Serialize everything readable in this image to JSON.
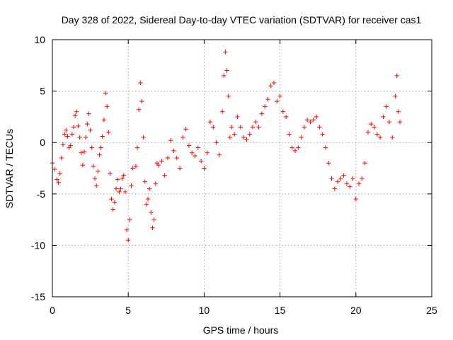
{
  "chart_data": {
    "type": "scatter",
    "title": "Day 328 of 2022, Sidereal Day-to-day VTEC variation (SDTVAR) for receiver cas1",
    "xlabel": "GPS time / hours",
    "ylabel": "SDTVAR / TECUs",
    "xlim": [
      0,
      25
    ],
    "ylim": [
      -15,
      10
    ],
    "xticks": [
      0,
      5,
      10,
      15,
      20,
      25
    ],
    "yticks": [
      -15,
      -10,
      -5,
      0,
      5,
      10
    ],
    "grid": true,
    "marker": "+",
    "color": "#ff0000",
    "series": [
      {
        "name": "SDTVAR",
        "x_range": [
          0,
          22.9
        ],
        "points": [
          [
            0.0,
            -2.0
          ],
          [
            0.15,
            -2.6
          ],
          [
            0.3,
            -3.6
          ],
          [
            0.4,
            -3.9
          ],
          [
            0.5,
            -3.0
          ],
          [
            0.6,
            -1.5
          ],
          [
            0.7,
            -0.2
          ],
          [
            0.8,
            0.8
          ],
          [
            0.9,
            1.2
          ],
          [
            1.0,
            0.6
          ],
          [
            1.1,
            -0.5
          ],
          [
            1.2,
            -0.3
          ],
          [
            1.3,
            0.8
          ],
          [
            1.4,
            1.5
          ],
          [
            1.5,
            2.6
          ],
          [
            1.6,
            3.0
          ],
          [
            1.7,
            1.6
          ],
          [
            1.8,
            0.5
          ],
          [
            1.9,
            -1.0
          ],
          [
            2.0,
            -2.2
          ],
          [
            2.1,
            -0.9
          ],
          [
            2.2,
            0.5
          ],
          [
            2.3,
            1.8
          ],
          [
            2.4,
            2.8
          ],
          [
            2.5,
            1.2
          ],
          [
            2.6,
            -0.5
          ],
          [
            2.7,
            -2.3
          ],
          [
            2.8,
            -3.5
          ],
          [
            2.9,
            -4.2
          ],
          [
            3.0,
            -2.8
          ],
          [
            3.1,
            -1.2
          ],
          [
            3.2,
            -0.5
          ],
          [
            3.3,
            0.6
          ],
          [
            3.4,
            2.2
          ],
          [
            3.5,
            4.8
          ],
          [
            3.6,
            3.5
          ],
          [
            3.7,
            1.0
          ],
          [
            3.8,
            -3.0
          ],
          [
            3.9,
            -5.5
          ],
          [
            4.0,
            -6.5
          ],
          [
            4.1,
            -5.8
          ],
          [
            4.2,
            -4.5
          ],
          [
            4.3,
            -3.6
          ],
          [
            4.4,
            -4.8
          ],
          [
            4.5,
            -4.5
          ],
          [
            4.6,
            -3.5
          ],
          [
            4.7,
            -3.2
          ],
          [
            4.8,
            -4.8
          ],
          [
            4.9,
            -8.5
          ],
          [
            5.0,
            -9.5
          ],
          [
            5.1,
            -7.5
          ],
          [
            5.2,
            -4.2
          ],
          [
            5.3,
            -2.5
          ],
          [
            5.5,
            -2.3
          ],
          [
            5.6,
            -0.5
          ],
          [
            5.7,
            3.2
          ],
          [
            5.8,
            5.8
          ],
          [
            5.9,
            4.0
          ],
          [
            6.0,
            0.5
          ],
          [
            6.1,
            -3.8
          ],
          [
            6.2,
            -6.0
          ],
          [
            6.3,
            -5.5
          ],
          [
            6.4,
            -4.5
          ],
          [
            6.5,
            -6.8
          ],
          [
            6.6,
            -8.3
          ],
          [
            6.7,
            -7.5
          ],
          [
            6.8,
            -4.0
          ],
          [
            6.9,
            -2.0
          ],
          [
            7.0,
            -2.2
          ],
          [
            7.2,
            -1.8
          ],
          [
            7.4,
            -3.2
          ],
          [
            7.6,
            -1.5
          ],
          [
            7.8,
            0.2
          ],
          [
            8.0,
            -0.8
          ],
          [
            8.2,
            -1.5
          ],
          [
            8.4,
            -2.5
          ],
          [
            8.6,
            0.5
          ],
          [
            8.8,
            1.3
          ],
          [
            9.0,
            -0.3
          ],
          [
            9.2,
            -1.0
          ],
          [
            9.4,
            -1.3
          ],
          [
            9.6,
            -0.5
          ],
          [
            9.8,
            -1.8
          ],
          [
            10.0,
            -2.5
          ],
          [
            10.2,
            -1.0
          ],
          [
            10.4,
            2.0
          ],
          [
            10.6,
            1.5
          ],
          [
            10.8,
            0.0
          ],
          [
            11.0,
            -1.2
          ],
          [
            11.2,
            3.0
          ],
          [
            11.3,
            6.5
          ],
          [
            11.4,
            8.8
          ],
          [
            11.5,
            7.0
          ],
          [
            11.6,
            4.5
          ],
          [
            11.7,
            0.5
          ],
          [
            11.8,
            1.5
          ],
          [
            12.0,
            0.8
          ],
          [
            12.2,
            2.5
          ],
          [
            12.4,
            1.5
          ],
          [
            12.6,
            0.5
          ],
          [
            12.8,
            0.3
          ],
          [
            13.0,
            0.8
          ],
          [
            13.2,
            1.5
          ],
          [
            13.4,
            2.0
          ],
          [
            13.6,
            1.5
          ],
          [
            13.8,
            2.8
          ],
          [
            14.0,
            3.5
          ],
          [
            14.2,
            4.2
          ],
          [
            14.4,
            5.5
          ],
          [
            14.6,
            5.8
          ],
          [
            14.8,
            4.0
          ],
          [
            15.0,
            4.5
          ],
          [
            15.2,
            3.0
          ],
          [
            15.4,
            2.5
          ],
          [
            15.6,
            0.8
          ],
          [
            15.8,
            -0.5
          ],
          [
            16.0,
            -0.8
          ],
          [
            16.2,
            -0.5
          ],
          [
            16.4,
            0.5
          ],
          [
            16.6,
            1.5
          ],
          [
            16.8,
            2.2
          ],
          [
            17.0,
            2.0
          ],
          [
            17.2,
            2.2
          ],
          [
            17.4,
            2.5
          ],
          [
            17.6,
            1.5
          ],
          [
            17.8,
            0.8
          ],
          [
            18.0,
            -0.5
          ],
          [
            18.2,
            -2.0
          ],
          [
            18.4,
            -3.5
          ],
          [
            18.6,
            -4.5
          ],
          [
            18.8,
            -3.8
          ],
          [
            19.0,
            -3.5
          ],
          [
            19.2,
            -3.2
          ],
          [
            19.4,
            -4.0
          ],
          [
            19.6,
            -4.3
          ],
          [
            19.8,
            -3.5
          ],
          [
            20.0,
            -5.5
          ],
          [
            20.2,
            -4.0
          ],
          [
            20.4,
            -3.5
          ],
          [
            20.6,
            -2.0
          ],
          [
            20.8,
            1.0
          ],
          [
            21.0,
            1.8
          ],
          [
            21.2,
            1.5
          ],
          [
            21.4,
            0.8
          ],
          [
            21.6,
            0.5
          ],
          [
            21.8,
            2.5
          ],
          [
            22.0,
            3.5
          ],
          [
            22.2,
            2.0
          ],
          [
            22.4,
            0.5
          ],
          [
            22.6,
            4.5
          ],
          [
            22.7,
            6.5
          ],
          [
            22.8,
            3.0
          ],
          [
            22.9,
            2.0
          ]
        ]
      }
    ]
  }
}
